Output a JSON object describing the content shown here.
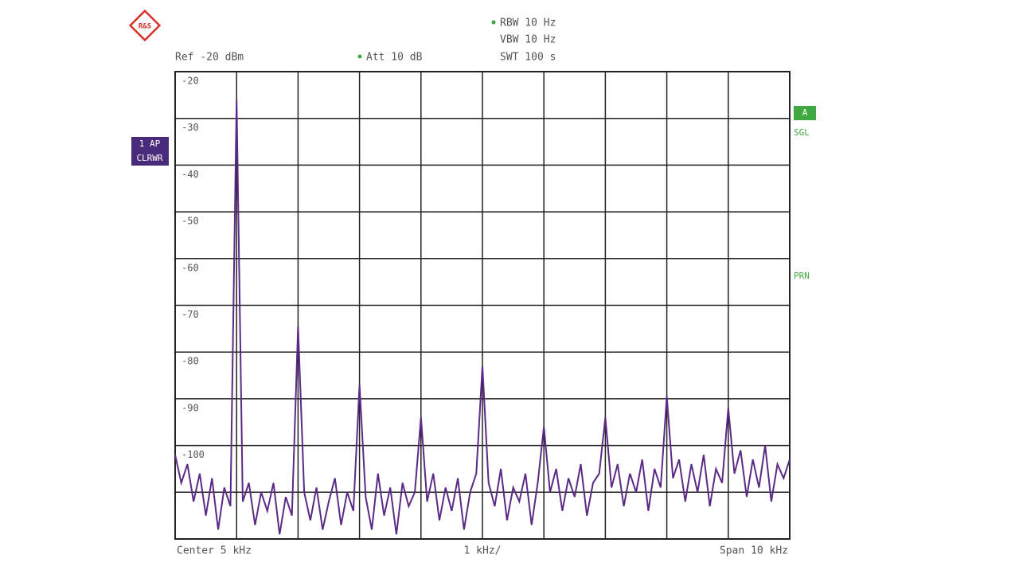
{
  "chart_data": {
    "type": "line",
    "x": [
      0,
      0.1,
      0.2,
      0.3,
      0.4,
      0.5,
      0.6,
      0.7,
      0.8,
      0.9,
      1,
      1.1,
      1.2,
      1.3,
      1.4,
      1.5,
      1.6,
      1.7,
      1.8,
      1.9,
      2,
      2.1,
      2.2,
      2.3,
      2.4,
      2.5,
      2.6,
      2.7,
      2.8,
      2.9,
      3,
      3.1,
      3.2,
      3.3,
      3.4,
      3.5,
      3.6,
      3.7,
      3.8,
      3.9,
      4,
      4.1,
      4.2,
      4.3,
      4.4,
      4.5,
      4.6,
      4.7,
      4.8,
      4.9,
      5,
      5.1,
      5.2,
      5.3,
      5.4,
      5.5,
      5.6,
      5.7,
      5.8,
      5.9,
      6,
      6.1,
      6.2,
      6.3,
      6.4,
      6.5,
      6.6,
      6.7,
      6.8,
      6.9,
      7,
      7.1,
      7.2,
      7.3,
      7.4,
      7.5,
      7.6,
      7.7,
      7.8,
      7.9,
      8,
      8.1,
      8.2,
      8.3,
      8.4,
      8.5,
      8.6,
      8.7,
      8.8,
      8.9,
      9,
      9.1,
      9.2,
      9.3,
      9.4,
      9.5,
      9.6,
      9.7,
      9.8,
      9.9,
      10
    ],
    "series": [
      {
        "color": "#5b2a86",
        "values": [
          -102,
          -108,
          -104,
          -112,
          -106,
          -115,
          -107,
          -118,
          -109,
          -113,
          -26,
          -112,
          -108,
          -117,
          -110,
          -114,
          -108,
          -119,
          -111,
          -115,
          -74.5,
          -110,
          -116,
          -109,
          -118,
          -112,
          -107,
          -117,
          -110,
          -114,
          -87,
          -111,
          -118,
          -106,
          -115,
          -109,
          -119,
          -108,
          -113,
          -110,
          -94,
          -112,
          -106,
          -116,
          -109,
          -114,
          -107,
          -118,
          -110,
          -106,
          -83,
          -108,
          -113,
          -105,
          -116,
          -109,
          -112,
          -106,
          -117,
          -108,
          -96,
          -110,
          -105,
          -114,
          -107,
          -111,
          -104,
          -115,
          -108,
          -106,
          -94,
          -109,
          -104,
          -113,
          -106,
          -110,
          -103,
          -114,
          -105,
          -109,
          -89.5,
          -107,
          -103,
          -112,
          -104,
          -110,
          -102,
          -113,
          -105,
          -108,
          -92,
          -106,
          -101,
          -111,
          -103,
          -109,
          -100,
          -112,
          -104,
          -107,
          -103
        ]
      }
    ],
    "xlim": [
      0,
      10
    ],
    "ylim": [
      -120,
      -20
    ],
    "yticks": [
      -20,
      -30,
      -40,
      -50,
      -60,
      -70,
      -80,
      -90,
      -100
    ],
    "grid": true
  },
  "instrument": {
    "logo": "R&S",
    "rbw": "RBW 10 Hz",
    "vbw": "VBW 10 Hz",
    "swt": "SWT 100 s",
    "ref": "Ref -20 dBm",
    "att": "Att 10 dB",
    "trace_mode": "1 AP",
    "trace_detector": "CLRWR",
    "trace_label": "A",
    "sweep_mode": "SGL",
    "prn": "PRN",
    "center": "Center 5 kHz",
    "per_div": "1 kHz/",
    "span": "Span 10 kHz"
  }
}
